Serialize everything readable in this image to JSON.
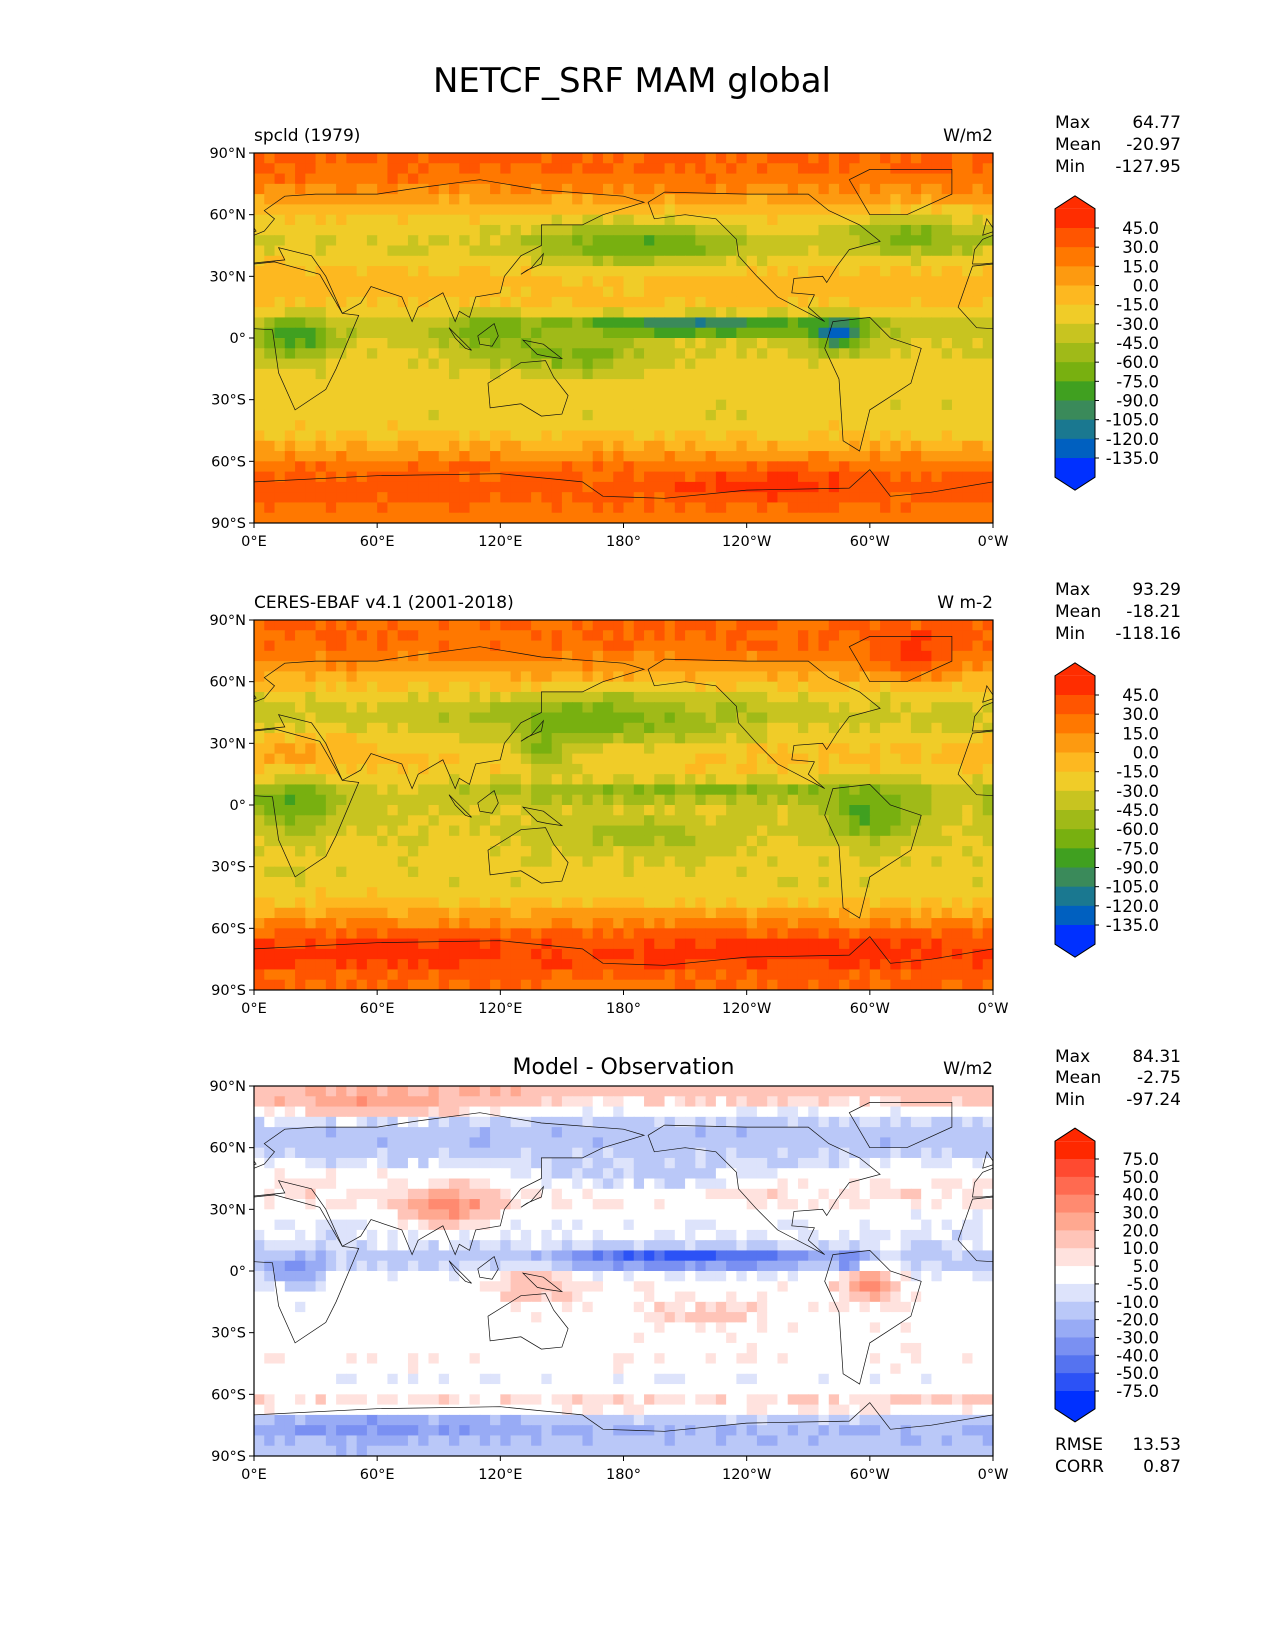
{
  "figure": {
    "title": "NETCF_SRF MAM global"
  },
  "axes": {
    "lat_ticks": [
      "90°N",
      "60°N",
      "30°N",
      "0°",
      "30°S",
      "60°S",
      "90°S"
    ],
    "lon_ticks": [
      "0°E",
      "60°E",
      "120°E",
      "180°",
      "120°W",
      "60°W",
      "0°W"
    ]
  },
  "chart_data": [
    {
      "type": "heatmap",
      "subtitle": "spcld (1979)",
      "units": "W/m2",
      "stats": {
        "max_label": "Max",
        "max": "64.77",
        "mean_label": "Mean",
        "mean": "-20.97",
        "min_label": "Min",
        "min": "-127.95"
      },
      "colorbar": {
        "levels": [
          "45.0",
          "30.0",
          "15.0",
          "0.0",
          "-15.0",
          "-30.0",
          "-45.0",
          "-60.0",
          "-75.0",
          "-90.0",
          "-105.0",
          "-120.0",
          "-135.0"
        ],
        "colors": [
          "#ff2d00",
          "#ff5500",
          "#ff7800",
          "#fd9a10",
          "#fdb820",
          "#f0cc28",
          "#c8c420",
          "#a0ba18",
          "#78b010",
          "#40a020",
          "#3a8a5a",
          "#1a7890",
          "#0060c0",
          "#0030ff"
        ]
      },
      "zonal_profile": {
        "lat": [
          85,
          75,
          65,
          55,
          45,
          35,
          25,
          15,
          5,
          -5,
          -15,
          -25,
          -35,
          -45,
          -55,
          -65,
          -75,
          -85
        ],
        "value": [
          32,
          22,
          0,
          -22,
          -30,
          -15,
          -5,
          -15,
          -40,
          -30,
          -22,
          -22,
          -25,
          -20,
          5,
          32,
          38,
          22
        ]
      },
      "features": [
        {
          "lon": 215,
          "lat": 6,
          "dlon": 45,
          "dlat": 3,
          "value": -80
        },
        {
          "lon": 160,
          "lat": -10,
          "dlon": 20,
          "dlat": 6,
          "value": -40
        },
        {
          "lon": 185,
          "lat": 45,
          "dlon": 35,
          "dlat": 8,
          "value": -45
        },
        {
          "lon": 320,
          "lat": 50,
          "dlon": 25,
          "dlat": 8,
          "value": -35
        },
        {
          "lon": 20,
          "lat": 0,
          "dlon": 12,
          "dlat": 8,
          "value": -50
        },
        {
          "lon": 285,
          "lat": 2,
          "dlon": 8,
          "dlat": 6,
          "value": -80
        },
        {
          "lon": 115,
          "lat": 0,
          "dlon": 15,
          "dlat": 10,
          "value": -30
        },
        {
          "lon": 255,
          "lat": -72,
          "dlon": 25,
          "dlat": 5,
          "value": 20
        }
      ]
    },
    {
      "type": "heatmap",
      "subtitle": "CERES-EBAF v4.1 (2001-2018)",
      "units": "W m-2",
      "stats": {
        "max_label": "Max",
        "max": "93.29",
        "mean_label": "Mean",
        "mean": "-18.21",
        "min_label": "Min",
        "min": "-118.16"
      },
      "colorbar": {
        "levels": [
          "45.0",
          "30.0",
          "15.0",
          "0.0",
          "-15.0",
          "-30.0",
          "-45.0",
          "-60.0",
          "-75.0",
          "-90.0",
          "-105.0",
          "-120.0",
          "-135.0"
        ],
        "colors": [
          "#ff2d00",
          "#ff5500",
          "#ff7800",
          "#fd9a10",
          "#fdb820",
          "#f0cc28",
          "#c8c420",
          "#a0ba18",
          "#78b010",
          "#40a020",
          "#3a8a5a",
          "#1a7890",
          "#0060c0",
          "#0030ff"
        ]
      },
      "zonal_profile": {
        "lat": [
          85,
          75,
          65,
          55,
          45,
          35,
          25,
          15,
          5,
          -5,
          -15,
          -25,
          -35,
          -45,
          -55,
          -65,
          -75,
          -85
        ],
        "value": [
          30,
          25,
          5,
          -20,
          -38,
          -28,
          -10,
          -20,
          -38,
          -30,
          -28,
          -25,
          -25,
          -20,
          10,
          38,
          45,
          30
        ]
      },
      "features": [
        {
          "lon": 170,
          "lat": 40,
          "dlon": 40,
          "dlat": 10,
          "value": -35
        },
        {
          "lon": 140,
          "lat": 25,
          "dlon": 10,
          "dlat": 6,
          "value": -40
        },
        {
          "lon": 210,
          "lat": 7,
          "dlon": 60,
          "dlat": 3,
          "value": -30
        },
        {
          "lon": 190,
          "lat": -15,
          "dlon": 30,
          "dlat": 6,
          "value": -25
        },
        {
          "lon": 300,
          "lat": -5,
          "dlon": 15,
          "dlat": 10,
          "value": -45
        },
        {
          "lon": 20,
          "lat": 0,
          "dlon": 15,
          "dlat": 10,
          "value": -40
        },
        {
          "lon": 20,
          "lat": 25,
          "dlon": 25,
          "dlat": 8,
          "value": 15
        },
        {
          "lon": 320,
          "lat": 72,
          "dlon": 15,
          "dlat": 8,
          "value": 30
        },
        {
          "lon": 60,
          "lat": -70,
          "dlon": 40,
          "dlat": 4,
          "value": 15
        },
        {
          "lon": 260,
          "lat": -70,
          "dlon": 40,
          "dlat": 4,
          "value": 15
        }
      ]
    },
    {
      "type": "heatmap",
      "subtitle": "Model - Observation",
      "units": "W/m2",
      "stats": {
        "max_label": "Max",
        "max": "84.31",
        "mean_label": "Mean",
        "mean": "-2.75",
        "min_label": "Min",
        "min": "-97.24",
        "rmse_label": "RMSE",
        "rmse": "13.53",
        "corr_label": "CORR",
        "corr": "0.87"
      },
      "colorbar": {
        "levels": [
          "75.0",
          "50.0",
          "40.0",
          "30.0",
          "20.0",
          "10.0",
          "5.0",
          "-5.0",
          "-10.0",
          "-20.0",
          "-30.0",
          "-40.0",
          "-50.0",
          "-75.0"
        ],
        "colors": [
          "#ff2800",
          "#ff4a30",
          "#ff6a50",
          "#ff8a70",
          "#ffa890",
          "#ffc4b8",
          "#ffe2de",
          "#ffffff",
          "#dde3fb",
          "#bac8f8",
          "#98abf5",
          "#7a90f2",
          "#5573f0",
          "#2c52f6",
          "#0030ff"
        ]
      },
      "zonal_profile": {
        "lat": [
          85,
          75,
          65,
          55,
          45,
          35,
          25,
          15,
          5,
          -5,
          -15,
          -25,
          -35,
          -45,
          -55,
          -65,
          -75,
          -85
        ],
        "value": [
          15,
          -10,
          -18,
          -10,
          4,
          8,
          -4,
          -6,
          -14,
          0,
          0,
          0,
          0,
          2,
          -4,
          12,
          -22,
          -15
        ]
      },
      "features": [
        {
          "lon": 210,
          "lat": 6,
          "dlon": 50,
          "dlat": 3,
          "value": -45
        },
        {
          "lon": 185,
          "lat": 45,
          "dlon": 40,
          "dlat": 6,
          "value": -15
        },
        {
          "lon": 95,
          "lat": 30,
          "dlon": 15,
          "dlat": 6,
          "value": 35
        },
        {
          "lon": 300,
          "lat": -5,
          "dlon": 10,
          "dlat": 8,
          "value": 30
        },
        {
          "lon": 20,
          "lat": 0,
          "dlon": 10,
          "dlat": 6,
          "value": -25
        },
        {
          "lon": 290,
          "lat": 5,
          "dlon": 5,
          "dlat": 4,
          "value": -30
        },
        {
          "lon": 60,
          "lat": 80,
          "dlon": 40,
          "dlat": 5,
          "value": 20
        },
        {
          "lon": 135,
          "lat": -5,
          "dlon": 15,
          "dlat": 8,
          "value": 20
        },
        {
          "lon": 225,
          "lat": -20,
          "dlon": 30,
          "dlat": 6,
          "value": 10
        },
        {
          "lon": 60,
          "lat": -75,
          "dlon": 40,
          "dlat": 5,
          "value": -15
        }
      ]
    }
  ]
}
